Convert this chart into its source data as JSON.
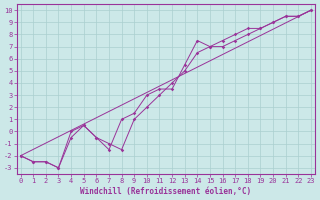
{
  "bg_color": "#cce8e8",
  "grid_color": "#aacfcf",
  "line_color": "#993399",
  "spine_color": "#993399",
  "xlabel": "Windchill (Refroidissement éolien,°C)",
  "ytick_vals": [
    -3,
    -2,
    -1,
    0,
    1,
    2,
    3,
    4,
    5,
    6,
    7,
    8,
    9,
    10
  ],
  "xtick_vals": [
    0,
    1,
    2,
    3,
    4,
    5,
    6,
    7,
    8,
    9,
    10,
    11,
    12,
    13,
    14,
    15,
    16,
    17,
    18,
    19,
    20,
    21,
    22,
    23
  ],
  "xlim": [
    -0.3,
    23.3
  ],
  "ylim": [
    -3.5,
    10.5
  ],
  "line1_x": [
    0,
    1,
    2,
    3,
    4,
    5,
    6,
    7,
    8,
    9,
    10,
    11,
    12,
    13,
    14,
    15,
    16,
    17,
    18,
    19,
    20,
    21,
    22,
    23
  ],
  "line1_y": [
    -2,
    -2.5,
    -2.5,
    -3,
    -0.5,
    0.5,
    -0.5,
    -1.5,
    1,
    1.5,
    3,
    3.5,
    3.5,
    5.5,
    7.5,
    7,
    7,
    7.5,
    8,
    8.5,
    9,
    9.5,
    9.5,
    10
  ],
  "line2_x": [
    0,
    1,
    2,
    3,
    4,
    5,
    6,
    7,
    8,
    9,
    10,
    11,
    12,
    13,
    14,
    15,
    16,
    17,
    18,
    19,
    20,
    21,
    22,
    23
  ],
  "line2_y": [
    -2,
    -2.5,
    -2.5,
    -3,
    0,
    0.5,
    -0.5,
    -1,
    -1.5,
    1,
    2,
    3,
    4,
    5,
    6.5,
    7,
    7.5,
    8,
    8.5,
    8.5,
    9,
    9.5,
    9.5,
    10
  ],
  "line3_x": [
    0,
    23
  ],
  "line3_y": [
    -2,
    10
  ],
  "marker": "D",
  "markersize": 1.8,
  "linewidth": 0.7,
  "xlabel_fontsize": 5.5,
  "tick_fontsize": 5
}
